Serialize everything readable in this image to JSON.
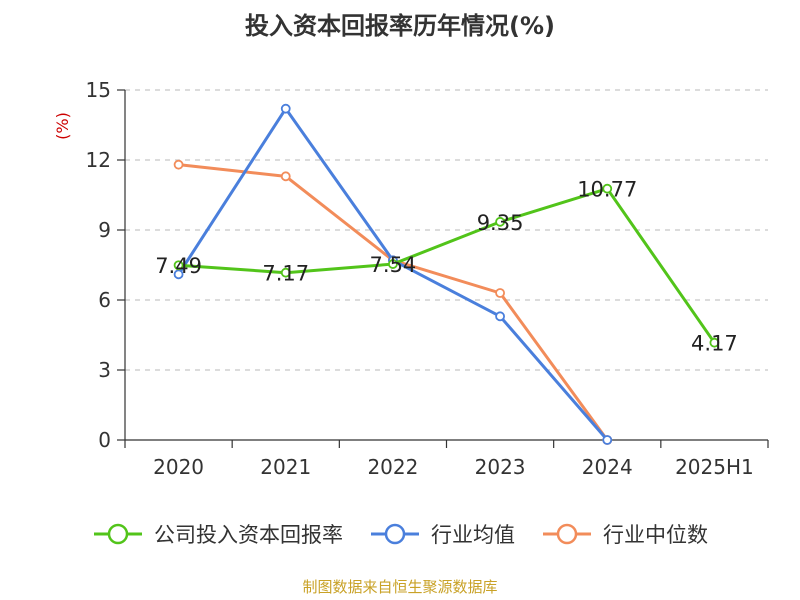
{
  "title": "投入资本回报率历年情况(%)",
  "source": "制图数据来自恒生聚源数据库",
  "chart_data": {
    "type": "line",
    "categories": [
      "2020",
      "2021",
      "2022",
      "2023",
      "2024",
      "2025H1"
    ],
    "ylabel": "(%)",
    "ylim": [
      0,
      15
    ],
    "yticks": [
      0,
      3,
      6,
      9,
      12,
      15
    ],
    "grid": true,
    "legend_position": "bottom",
    "series": [
      {
        "name": "公司投入资本回报率",
        "color": "#52c41a",
        "values": [
          7.49,
          7.17,
          7.54,
          9.35,
          10.77,
          4.17
        ],
        "labels": [
          "7.49",
          "7.17",
          "7.54",
          "9.35",
          "10.77",
          "4.17"
        ]
      },
      {
        "name": "行业均值",
        "color": "#4a7fdc",
        "values": [
          7.1,
          14.2,
          7.7,
          5.3,
          0.0,
          null
        ]
      },
      {
        "name": "行业中位数",
        "color": "#f28c5a",
        "values": [
          11.8,
          11.3,
          7.7,
          6.3,
          0.0,
          null
        ]
      }
    ],
    "ylabel_color": "#cc0000"
  }
}
